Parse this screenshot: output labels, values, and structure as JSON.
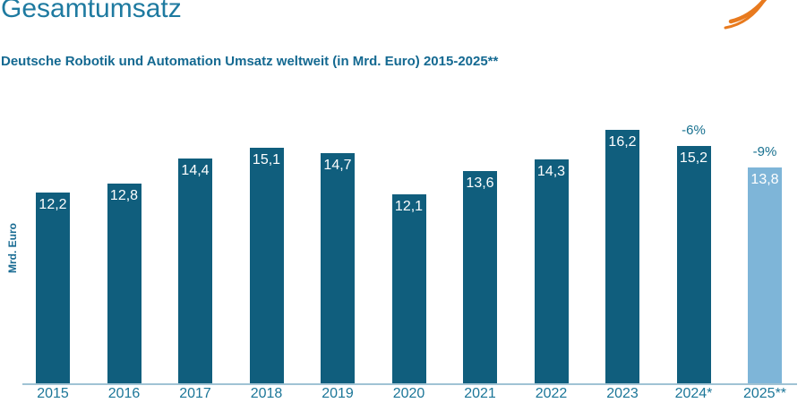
{
  "page": {
    "title": "Gesamtumsatz"
  },
  "logo": {
    "icon": "orange-swoosh-icon",
    "color": "#e87a1e"
  },
  "chart_data": {
    "type": "bar",
    "title": "Deutsche Robotik und Automation Umsatz weltweit (in Mrd. Euro) 2015-2025**",
    "ylabel": "Mrd. Euro",
    "xlabel": "",
    "categories": [
      "2015",
      "2016",
      "2017",
      "2018",
      "2019",
      "2020",
      "2021",
      "2022",
      "2023",
      "2024*",
      "2025**"
    ],
    "values": [
      12.2,
      12.8,
      14.4,
      15.1,
      14.7,
      12.1,
      13.6,
      14.3,
      16.2,
      15.2,
      13.8
    ],
    "value_labels": [
      "12,2",
      "12,8",
      "14,4",
      "15,1",
      "14,7",
      "12,1",
      "13,6",
      "14,3",
      "16,2",
      "15,2",
      "13,8"
    ],
    "annotations": [
      {
        "category": "2024*",
        "text": "-6%"
      },
      {
        "category": "2025**",
        "text": "-9%"
      }
    ],
    "highlight_index": 10,
    "ylim": [
      0,
      18
    ],
    "grid": false,
    "legend": false,
    "colors": {
      "bar": "#105e7d",
      "highlight_bar": "#7eb5d8",
      "value_label": "#ffffff",
      "axis_text": "#1b7698",
      "annotation_text": "#17708f",
      "axis_line": "#a0c3d4",
      "title": "#1e7aa0",
      "subtitle": "#146991"
    }
  }
}
